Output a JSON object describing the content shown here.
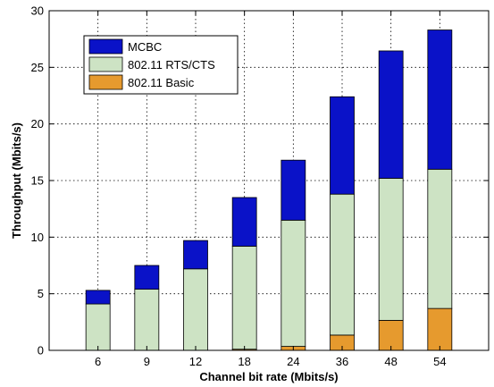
{
  "chart_data": {
    "type": "bar",
    "stacked": true,
    "categories": [
      "6",
      "9",
      "12",
      "18",
      "24",
      "36",
      "48",
      "54"
    ],
    "series": [
      {
        "name": "802.11 Basic",
        "color": "#e69a2e",
        "values": [
          0.0,
          0.0,
          0.0,
          0.1,
          0.35,
          1.35,
          2.65,
          3.7
        ]
      },
      {
        "name": "802.11 RTS/CTS",
        "color": "#cde3c4",
        "values": [
          4.1,
          5.4,
          7.2,
          9.1,
          11.15,
          12.45,
          12.55,
          12.3
        ]
      },
      {
        "name": "MCBC",
        "color": "#0a12c8",
        "values": [
          1.2,
          2.1,
          2.5,
          4.3,
          5.3,
          8.6,
          11.25,
          12.3
        ]
      }
    ],
    "totals": [
      5.3,
      7.5,
      9.7,
      13.5,
      16.8,
      22.4,
      26.45,
      28.3
    ],
    "legend_order": [
      "MCBC",
      "802.11 RTS/CTS",
      "802.11 Basic"
    ],
    "legend_position": "top-left",
    "xlabel": "Channel bit rate (Mbits/s)",
    "ylabel": "Throughput (Mbits/s)",
    "ylim": [
      0,
      30
    ],
    "yticks": [
      0,
      5,
      10,
      15,
      20,
      25,
      30
    ],
    "grid": true
  }
}
